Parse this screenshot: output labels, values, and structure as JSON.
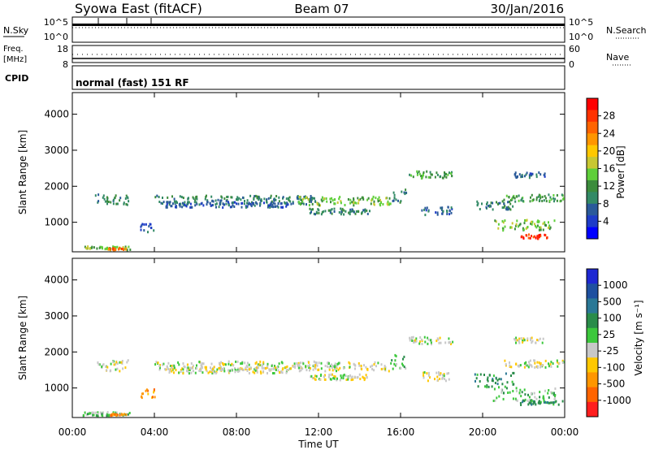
{
  "header": {
    "station": "Syowa East (fitACF)",
    "beam": "Beam 07",
    "date": "30/Jan/2016"
  },
  "panels": {
    "nsky_label": "N.Sky",
    "nsky_ticks": [
      "10^5",
      "10^0"
    ],
    "nsky_right_ticks": [
      "10^5",
      "10^0"
    ],
    "nsearch_label": "N.Search",
    "freq_label_1": "Freq.",
    "freq_label_2": "[MHz]",
    "freq_ticks": [
      "18",
      "8"
    ],
    "nave_ticks": [
      "60",
      "0"
    ],
    "nave_label": "Nave",
    "cpid_label": "CPID",
    "cpid_value": "normal (fast) 151 RF"
  },
  "axes": {
    "ylabel": "Slant Range [km]",
    "xlabel": "Time UT",
    "yticks": [
      "1000",
      "2000",
      "3000",
      "4000"
    ],
    "xticks": [
      "00:00",
      "04:00",
      "08:00",
      "12:00",
      "16:00",
      "20:00",
      "00:00"
    ]
  },
  "colorbars": {
    "power": {
      "label": "Power [dB]",
      "ticks": [
        "4",
        "8",
        "12",
        "16",
        "20",
        "24",
        "28"
      ],
      "colors": [
        "#0000ff",
        "#1e3cc8",
        "#2a5a9a",
        "#338a66",
        "#3c8c3c",
        "#5fcf3a",
        "#c8c832",
        "#ffc800",
        "#ff9600",
        "#ff6400",
        "#ff3200",
        "#ff0000"
      ]
    },
    "velocity": {
      "label": "Velocity [m s⁻¹]",
      "ticks": [
        "1000",
        "500",
        "100",
        "25",
        "-25",
        "-100",
        "-500",
        "-1000"
      ],
      "colors": [
        "#1e28d2",
        "#1e50a0",
        "#2a7896",
        "#2a8c4a",
        "#3cc83c",
        "#c8c8c8",
        "#ffc800",
        "#ff9600",
        "#ff6400",
        "#ff1e1e"
      ]
    }
  },
  "chart_data": [
    {
      "type": "scatter",
      "title": "Power",
      "xlabel": "Time UT",
      "ylabel": "Slant Range [km]",
      "xlim": [
        0,
        24
      ],
      "ylim": [
        180,
        4600
      ],
      "series": [
        {
          "x0": 1.1,
          "x1": 2.8,
          "y": 1650,
          "spread": 150,
          "level": 3
        },
        {
          "x0": 3.3,
          "x1": 4.0,
          "y": 880,
          "spread": 120,
          "level": 2
        },
        {
          "x0": 4.0,
          "x1": 12.0,
          "y": 1650,
          "spread": 120,
          "level": 3
        },
        {
          "x0": 4.5,
          "x1": 10.5,
          "y": 1520,
          "spread": 80,
          "level": 2
        },
        {
          "x0": 11.5,
          "x1": 14.5,
          "y": 1330,
          "spread": 80,
          "level": 3
        },
        {
          "x0": 11.0,
          "x1": 15.5,
          "y": 1620,
          "spread": 120,
          "level": 5
        },
        {
          "x0": 15.5,
          "x1": 16.3,
          "y": 1750,
          "spread": 200,
          "level": 3
        },
        {
          "x0": 16.4,
          "x1": 18.5,
          "y": 2350,
          "spread": 100,
          "level": 4
        },
        {
          "x0": 17.0,
          "x1": 18.5,
          "y": 1350,
          "spread": 120,
          "level": 2
        },
        {
          "x0": 19.5,
          "x1": 21.5,
          "y": 1500,
          "spread": 120,
          "level": 3
        },
        {
          "x0": 20.5,
          "x1": 23.5,
          "y": 950,
          "spread": 150,
          "level": 5
        },
        {
          "x0": 21.0,
          "x1": 24.0,
          "y": 1700,
          "spread": 100,
          "level": 4
        },
        {
          "x0": 21.5,
          "x1": 23.0,
          "y": 2350,
          "spread": 80,
          "level": 2
        },
        {
          "x0": 21.8,
          "x1": 23.2,
          "y": 630,
          "spread": 60,
          "level": 10
        },
        {
          "x0": 0.5,
          "x1": 2.8,
          "y": 310,
          "spread": 50,
          "level": 5
        },
        {
          "x0": 1.7,
          "x1": 2.6,
          "y": 290,
          "spread": 30,
          "level": 9
        }
      ]
    },
    {
      "type": "scatter",
      "title": "Velocity",
      "xlabel": "Time UT",
      "ylabel": "Slant Range [km]",
      "xlim": [
        0,
        24
      ],
      "ylim": [
        180,
        4600
      ],
      "series": [
        {
          "x0": 1.1,
          "x1": 2.8,
          "y": 1650,
          "spread": 150,
          "level": 5
        },
        {
          "x0": 3.3,
          "x1": 4.0,
          "y": 880,
          "spread": 120,
          "level": 7
        },
        {
          "x0": 4.0,
          "x1": 12.0,
          "y": 1650,
          "spread": 120,
          "level": 5
        },
        {
          "x0": 4.5,
          "x1": 10.5,
          "y": 1520,
          "spread": 80,
          "level": 5
        },
        {
          "x0": 11.5,
          "x1": 14.5,
          "y": 1330,
          "spread": 80,
          "level": 5
        },
        {
          "x0": 11.0,
          "x1": 15.5,
          "y": 1620,
          "spread": 120,
          "level": 5
        },
        {
          "x0": 15.5,
          "x1": 16.3,
          "y": 1750,
          "spread": 200,
          "level": 4
        },
        {
          "x0": 16.4,
          "x1": 18.5,
          "y": 2350,
          "spread": 100,
          "level": 5
        },
        {
          "x0": 17.0,
          "x1": 18.5,
          "y": 1350,
          "spread": 120,
          "level": 5
        },
        {
          "x0": 19.5,
          "x1": 21.5,
          "y": 1250,
          "spread": 200,
          "level": 3
        },
        {
          "x0": 20.5,
          "x1": 23.5,
          "y": 850,
          "spread": 180,
          "level": 4
        },
        {
          "x0": 21.0,
          "x1": 24.0,
          "y": 1700,
          "spread": 100,
          "level": 5
        },
        {
          "x0": 21.5,
          "x1": 23.0,
          "y": 2350,
          "spread": 80,
          "level": 5
        },
        {
          "x0": 21.8,
          "x1": 24.0,
          "y": 620,
          "spread": 60,
          "level": 3
        },
        {
          "x0": 0.5,
          "x1": 2.8,
          "y": 310,
          "spread": 50,
          "level": 4
        },
        {
          "x0": 1.7,
          "x1": 2.6,
          "y": 290,
          "spread": 30,
          "level": 7
        }
      ]
    }
  ]
}
